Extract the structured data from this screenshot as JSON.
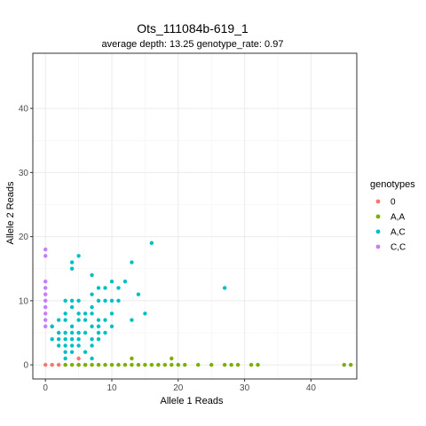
{
  "chart_data": {
    "type": "scatter",
    "title": "Ots_111084b-619_1",
    "subtitle": "average depth:  13.25  genotype_rate:  0.97",
    "xlabel": "Allele 1 Reads",
    "ylabel": "Allele 2 Reads",
    "xlim": [
      -1.9,
      46.9
    ],
    "ylim": [
      -2.2,
      48.6
    ],
    "xticks": [
      0,
      10,
      20,
      30,
      40
    ],
    "yticks": [
      0,
      10,
      20,
      30,
      40
    ],
    "grid": true,
    "legend": {
      "title": "genotypes",
      "position": "right"
    },
    "series": [
      {
        "name": "0",
        "color": "#F8766D",
        "points": [
          [
            0,
            0
          ],
          [
            1,
            0
          ],
          [
            2,
            0
          ],
          [
            5,
            0
          ],
          [
            6,
            0
          ],
          [
            5,
            1
          ],
          [
            1,
            6
          ]
        ]
      },
      {
        "name": "A,A",
        "color": "#7CAE00",
        "points": [
          [
            3,
            0
          ],
          [
            4,
            0
          ],
          [
            5,
            0
          ],
          [
            6,
            0
          ],
          [
            7,
            0
          ],
          [
            8,
            0
          ],
          [
            9,
            0
          ],
          [
            10,
            0
          ],
          [
            11,
            0
          ],
          [
            12,
            0
          ],
          [
            13,
            0
          ],
          [
            14,
            0
          ],
          [
            15,
            0
          ],
          [
            16,
            0
          ],
          [
            17,
            0
          ],
          [
            18,
            0
          ],
          [
            19,
            0
          ],
          [
            20,
            0
          ],
          [
            21,
            0
          ],
          [
            23,
            0
          ],
          [
            25,
            0
          ],
          [
            27,
            0
          ],
          [
            28,
            0
          ],
          [
            29,
            0
          ],
          [
            31,
            0
          ],
          [
            32,
            0
          ],
          [
            45,
            0
          ],
          [
            46,
            0
          ],
          [
            13,
            1
          ],
          [
            19,
            1
          ]
        ]
      },
      {
        "name": "A,C",
        "color": "#00BFC4",
        "points": [
          [
            16,
            19
          ],
          [
            5,
            17
          ],
          [
            4,
            16
          ],
          [
            4,
            15
          ],
          [
            13,
            16
          ],
          [
            7,
            14
          ],
          [
            27,
            12
          ],
          [
            10,
            13
          ],
          [
            12,
            13
          ],
          [
            8,
            12
          ],
          [
            9,
            12
          ],
          [
            11,
            12
          ],
          [
            14,
            11
          ],
          [
            7,
            11
          ],
          [
            4,
            10
          ],
          [
            5,
            10
          ],
          [
            8,
            10
          ],
          [
            9,
            10
          ],
          [
            10,
            10
          ],
          [
            11,
            10
          ],
          [
            3,
            10
          ],
          [
            4,
            9
          ],
          [
            7,
            9
          ],
          [
            3,
            8
          ],
          [
            7,
            8
          ],
          [
            10,
            8
          ],
          [
            15,
            8
          ],
          [
            5,
            8
          ],
          [
            6,
            8
          ],
          [
            2,
            7
          ],
          [
            3,
            7
          ],
          [
            5,
            7
          ],
          [
            6,
            7
          ],
          [
            8,
            7
          ],
          [
            9,
            7
          ],
          [
            13,
            7
          ],
          [
            1,
            6
          ],
          [
            4,
            6
          ],
          [
            7,
            6
          ],
          [
            8,
            6
          ],
          [
            10,
            6
          ],
          [
            2,
            5
          ],
          [
            3,
            5
          ],
          [
            4,
            5
          ],
          [
            5,
            5
          ],
          [
            6,
            5
          ],
          [
            8,
            5
          ],
          [
            9,
            5
          ],
          [
            1,
            4
          ],
          [
            2,
            4
          ],
          [
            3,
            4
          ],
          [
            4,
            4
          ],
          [
            5,
            4
          ],
          [
            7,
            4
          ],
          [
            8,
            4
          ],
          [
            2,
            3
          ],
          [
            3,
            3
          ],
          [
            4,
            3
          ],
          [
            5,
            3
          ],
          [
            7,
            3
          ],
          [
            3,
            2
          ],
          [
            4,
            2
          ],
          [
            6,
            2
          ],
          [
            3,
            1
          ],
          [
            7,
            1
          ]
        ]
      },
      {
        "name": "C,C",
        "color": "#C77CFF",
        "points": [
          [
            0,
            18
          ],
          [
            0,
            17
          ],
          [
            0,
            13
          ],
          [
            0,
            12
          ],
          [
            0,
            11
          ],
          [
            0,
            10
          ],
          [
            0,
            9
          ],
          [
            0,
            8
          ],
          [
            0,
            7
          ],
          [
            0,
            6
          ]
        ]
      }
    ]
  }
}
